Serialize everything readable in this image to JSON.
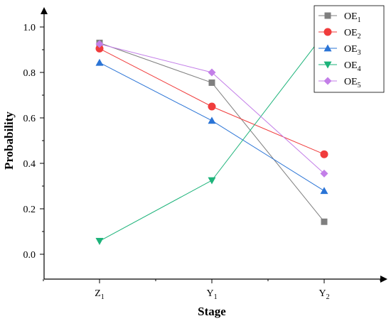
{
  "chart_data": {
    "type": "line",
    "xlabel": "Stage",
    "ylabel": "Probability",
    "categories": [
      {
        "base": "Z",
        "sub": "1"
      },
      {
        "base": "Y",
        "sub": "1"
      },
      {
        "base": "Y",
        "sub": "2"
      }
    ],
    "ylim": [
      -0.1,
      1.1
    ],
    "yticks": [
      "0.0",
      "0.2",
      "0.4",
      "0.6",
      "0.8",
      "1.0"
    ],
    "grid": false,
    "legend_position": "top-right",
    "series": [
      {
        "name_base": "OE",
        "name_sub": "1",
        "color": "#7f7f7f",
        "marker": "square",
        "values": [
          0.93,
          0.755,
          0.143
        ]
      },
      {
        "name_base": "OE",
        "name_sub": "2",
        "color": "#f03c3c",
        "marker": "circle",
        "values": [
          0.905,
          0.65,
          0.44
        ]
      },
      {
        "name_base": "OE",
        "name_sub": "3",
        "color": "#2a74d6",
        "marker": "triangle-up",
        "values": [
          0.843,
          0.588,
          0.279
        ]
      },
      {
        "name_base": "OE",
        "name_sub": "4",
        "color": "#1db37a",
        "marker": "triangle-down",
        "values": [
          0.058,
          0.325,
          0.97
        ]
      },
      {
        "name_base": "OE",
        "name_sub": "5",
        "color": "#c37ee8",
        "marker": "diamond",
        "values": [
          0.925,
          0.8,
          0.355
        ]
      }
    ]
  }
}
